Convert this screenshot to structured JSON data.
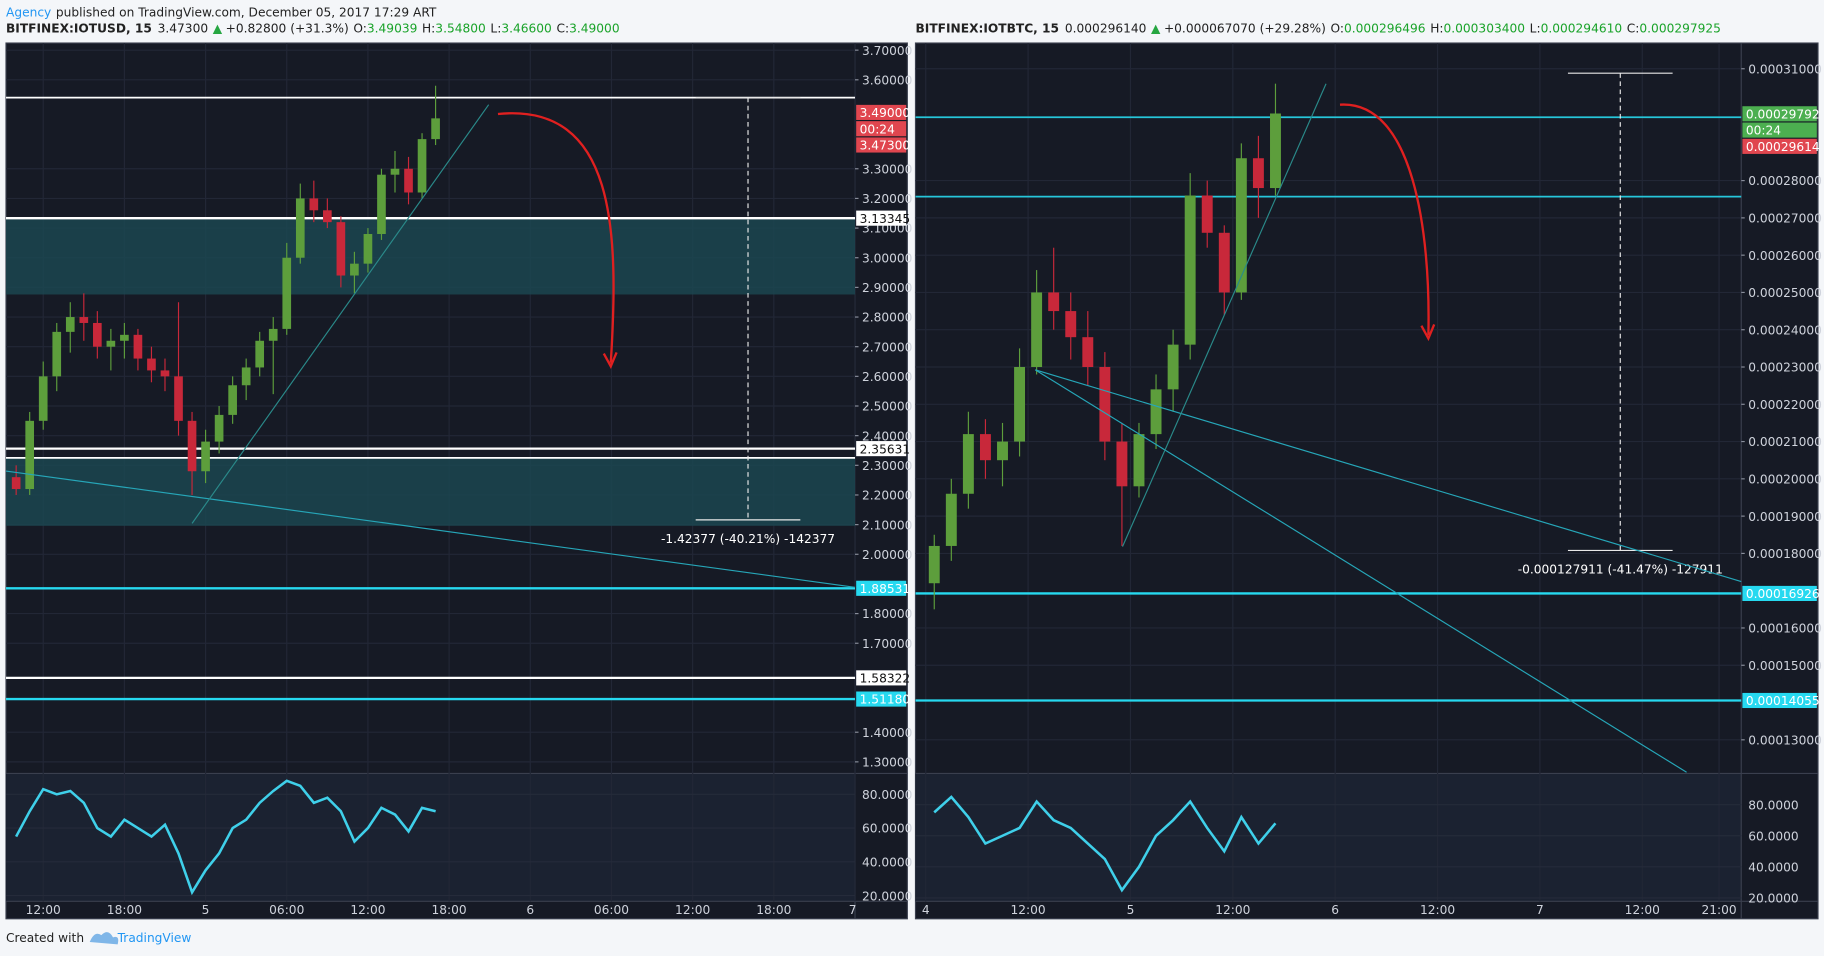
{
  "header": {
    "author": "Agency",
    "text": "published on TradingView.com, December 05, 2017 17:29 ART"
  },
  "footer": {
    "text": "Created with",
    "brand": "TradingView"
  },
  "chart_data": [
    {
      "type": "candlestick",
      "symbol": "BITFINEX:IOTUSD, 15",
      "last": "3.47300",
      "change_arrow": "▲",
      "change": "+0.82800 (+31.3%)",
      "ohlc": [
        {
          "label": "O:",
          "value": "3.49039"
        },
        {
          "label": "H:",
          "value": "3.54800"
        },
        {
          "label": "L:",
          "value": "3.46600"
        },
        {
          "label": "C:",
          "value": "3.49000"
        }
      ],
      "up_color": "#5d9e3c",
      "down_color": "#c8283a",
      "x": [
        1,
        2,
        3,
        4,
        5,
        6,
        7,
        8,
        9,
        10,
        11,
        12,
        13,
        14,
        15,
        16,
        17,
        18,
        19,
        20,
        21,
        22,
        23,
        24,
        25,
        26,
        27,
        28,
        29,
        30,
        31,
        32
      ],
      "open": [
        2.26,
        2.22,
        2.45,
        2.6,
        2.75,
        2.8,
        2.78,
        2.7,
        2.72,
        2.74,
        2.66,
        2.62,
        2.6,
        2.45,
        2.28,
        2.38,
        2.47,
        2.57,
        2.63,
        2.72,
        2.76,
        3.0,
        3.2,
        3.16,
        3.12,
        2.94,
        2.98,
        3.08,
        3.28,
        3.3,
        3.22,
        3.4
      ],
      "high": [
        2.3,
        2.48,
        2.65,
        2.78,
        2.85,
        2.88,
        2.82,
        2.76,
        2.78,
        2.76,
        2.7,
        2.66,
        2.85,
        2.48,
        2.42,
        2.5,
        2.6,
        2.66,
        2.75,
        2.8,
        3.05,
        3.25,
        3.26,
        3.2,
        3.14,
        3.02,
        3.1,
        3.3,
        3.36,
        3.34,
        3.42,
        3.58
      ],
      "low": [
        2.2,
        2.2,
        2.42,
        2.55,
        2.68,
        2.72,
        2.66,
        2.62,
        2.66,
        2.62,
        2.58,
        2.55,
        2.4,
        2.2,
        2.24,
        2.34,
        2.44,
        2.52,
        2.6,
        2.54,
        2.74,
        2.98,
        3.12,
        3.1,
        2.9,
        2.88,
        2.95,
        3.06,
        3.22,
        3.18,
        3.2,
        3.38
      ],
      "close": [
        2.22,
        2.45,
        2.6,
        2.75,
        2.8,
        2.78,
        2.7,
        2.72,
        2.74,
        2.66,
        2.62,
        2.6,
        2.45,
        2.28,
        2.38,
        2.47,
        2.57,
        2.63,
        2.72,
        2.76,
        3.0,
        3.2,
        3.16,
        3.12,
        2.94,
        2.98,
        3.08,
        3.28,
        3.3,
        3.22,
        3.4,
        3.47
      ],
      "xlim": [
        0.25,
        63
      ],
      "xticks": [
        {
          "value": 3,
          "label": "12:00"
        },
        {
          "value": 9,
          "label": "18:00"
        },
        {
          "value": 15,
          "label": "5"
        },
        {
          "value": 21,
          "label": "06:00"
        },
        {
          "value": 27,
          "label": "12:00"
        },
        {
          "value": 33,
          "label": "18:00"
        },
        {
          "value": 39,
          "label": "6"
        },
        {
          "value": 45,
          "label": "06:00"
        },
        {
          "value": 51,
          "label": "12:00"
        },
        {
          "value": 57,
          "label": "18:00"
        },
        {
          "value": 63,
          "label": "7"
        }
      ],
      "ylim": [
        1.265,
        3.724
      ],
      "yticks": [
        {
          "value": 3.7,
          "label": "3.70000"
        },
        {
          "value": 3.6,
          "label": "3.60000"
        },
        {
          "value": 3.3,
          "label": "3.30000"
        },
        {
          "value": 3.2,
          "label": "3.20000"
        },
        {
          "value": 3.1,
          "label": "3.10000"
        },
        {
          "value": 3.0,
          "label": "3.00000"
        },
        {
          "value": 2.9,
          "label": "2.90000"
        },
        {
          "value": 2.8,
          "label": "2.80000"
        },
        {
          "value": 2.7,
          "label": "2.70000"
        },
        {
          "value": 2.6,
          "label": "2.60000"
        },
        {
          "value": 2.5,
          "label": "2.50000"
        },
        {
          "value": 2.4,
          "label": "2.40000"
        },
        {
          "value": 2.3,
          "label": "2.30000"
        },
        {
          "value": 2.2,
          "label": "2.20000"
        },
        {
          "value": 2.1,
          "label": "2.10000"
        },
        {
          "value": 2.0,
          "label": "2.00000"
        },
        {
          "value": 1.8,
          "label": "1.80000"
        },
        {
          "value": 1.7,
          "label": "1.70000"
        },
        {
          "value": 1.4,
          "label": "1.40000"
        },
        {
          "value": 1.3,
          "label": "1.30000"
        }
      ],
      "grid": true,
      "zone_color": "#1b4750",
      "zones": [
        {
          "from": 2.876,
          "to": 3.13345
        },
        {
          "from": 2.096,
          "to": 2.325
        }
      ],
      "lines": [
        {
          "value": 3.54,
          "color": "#ffffff"
        },
        {
          "value": 2.325,
          "color": "#ffffff"
        }
      ],
      "countdown": "00:24",
      "price_labels": [
        {
          "value": 3.49,
          "label": "3.49000",
          "color": "#e0464f",
          "line": false
        },
        {
          "value": 3.473,
          "label": "3.47300",
          "color": "#e0464f",
          "line": false
        },
        {
          "value": 3.13345,
          "color": "#ffffff",
          "line": true
        },
        {
          "value": 2.35631,
          "color": "#ffffff",
          "line": true
        },
        {
          "value": 1.88531,
          "color": "#26d9f0",
          "line": true
        },
        {
          "value": 1.58322,
          "color": "#ffffff",
          "line": true
        },
        {
          "value": 1.5118,
          "label": "1.51180",
          "color": "#26d9f0",
          "line": true
        }
      ],
      "measure": {
        "from": 3.54,
        "to": 2.116,
        "label": "-1.42377 (-40.21%) -142377"
      },
      "rsi": {
        "color": "#3fd0ea",
        "values": [
          55,
          70,
          83,
          80,
          82,
          75,
          60,
          55,
          65,
          60,
          55,
          62,
          45,
          22,
          35,
          45,
          60,
          65,
          75,
          82,
          88,
          85,
          75,
          78,
          70,
          52,
          60,
          72,
          68,
          58,
          72,
          70
        ],
        "ylim": [
          16.6,
          92.4
        ],
        "yticks": [
          {
            "value": 80,
            "label": "80.0000"
          },
          {
            "value": 60,
            "label": "60.0000"
          },
          {
            "value": 40,
            "label": "40.0000"
          },
          {
            "value": 20,
            "label": "20.0000"
          }
        ]
      }
    },
    {
      "type": "candlestick",
      "symbol": "BITFINEX:IOTBTC, 15",
      "last": "0.000296140",
      "change_arrow": "▲",
      "change": "+0.000067070 (+29.28%)",
      "ohlc": [
        {
          "label": "O:",
          "value": "0.000296496"
        },
        {
          "label": "H:",
          "value": "0.000303400"
        },
        {
          "label": "L:",
          "value": "0.000294610"
        },
        {
          "label": "C:",
          "value": "0.000297925"
        }
      ],
      "up_color": "#5d9e3c",
      "down_color": "#c8283a",
      "x": [
        1,
        3,
        5,
        7,
        9,
        11,
        13,
        15,
        17,
        19,
        21,
        23,
        25,
        27,
        29,
        31,
        33,
        35,
        37,
        39,
        41
      ],
      "open": [
        0.000172,
        0.000182,
        0.000196,
        0.000212,
        0.000205,
        0.00021,
        0.00023,
        0.00025,
        0.000245,
        0.000238,
        0.00023,
        0.00021,
        0.000198,
        0.000212,
        0.000224,
        0.000236,
        0.000276,
        0.000266,
        0.00025,
        0.000286,
        0.000278
      ],
      "high": [
        0.000185,
        0.0002,
        0.000218,
        0.000216,
        0.000215,
        0.000235,
        0.000256,
        0.000262,
        0.00025,
        0.000245,
        0.000234,
        0.000215,
        0.000215,
        0.000228,
        0.00024,
        0.000282,
        0.00028,
        0.000268,
        0.00029,
        0.000292,
        0.000306
      ],
      "low": [
        0.000165,
        0.000178,
        0.000192,
        0.0002,
        0.000198,
        0.000206,
        0.000228,
        0.00024,
        0.000232,
        0.000225,
        0.000205,
        0.000182,
        0.000195,
        0.000208,
        0.000218,
        0.000232,
        0.000262,
        0.000244,
        0.000248,
        0.00027,
        0.000276
      ],
      "close": [
        0.000182,
        0.000196,
        0.000212,
        0.000205,
        0.00021,
        0.00023,
        0.00025,
        0.000245,
        0.000238,
        0.00023,
        0.00021,
        0.000198,
        0.000212,
        0.000224,
        0.000236,
        0.000276,
        0.000266,
        0.00025,
        0.000286,
        0.000278,
        0.000298
      ],
      "xlim": [
        -1.2,
        95.6
      ],
      "xticks": [
        {
          "value": 0,
          "label": "4"
        },
        {
          "value": 12,
          "label": "12:00"
        },
        {
          "value": 24,
          "label": "5"
        },
        {
          "value": 36,
          "label": "12:00"
        },
        {
          "value": 48,
          "label": "6"
        },
        {
          "value": 60,
          "label": "12:00"
        },
        {
          "value": 72,
          "label": "7"
        },
        {
          "value": 84,
          "label": "12:00"
        },
        {
          "value": 93,
          "label": "21:00"
        }
      ],
      "ylim": [
        0.0001213,
        0.0003169
      ],
      "yticks": [
        {
          "value": 0.00031,
          "label": "0.00031000"
        },
        {
          "value": 0.00028,
          "label": "0.00028000"
        },
        {
          "value": 0.00027,
          "label": "0.00027000"
        },
        {
          "value": 0.00026,
          "label": "0.00026000"
        },
        {
          "value": 0.00025,
          "label": "0.00025000"
        },
        {
          "value": 0.00024,
          "label": "0.00024000"
        },
        {
          "value": 0.00023,
          "label": "0.00023000"
        },
        {
          "value": 0.00022,
          "label": "0.00022000"
        },
        {
          "value": 0.00021,
          "label": "0.00021000"
        },
        {
          "value": 0.0002,
          "label": "0.00020000"
        },
        {
          "value": 0.00019,
          "label": "0.00019000"
        },
        {
          "value": 0.00018,
          "label": "0.00018000"
        },
        {
          "value": 0.00016,
          "label": "0.00016000"
        },
        {
          "value": 0.00015,
          "label": "0.00015000"
        },
        {
          "value": 0.00013,
          "label": "0.00013000"
        }
      ],
      "grid": true,
      "zone_color": "#1b4750",
      "zones": [],
      "lines": [
        {
          "value": 0.000297,
          "color": "#26c6da"
        },
        {
          "value": 0.0002757,
          "color": "#26c6da"
        }
      ],
      "countdown": "00:24",
      "price_labels": [
        {
          "value": 0.00029792,
          "color": "#4caf50",
          "line": false
        },
        {
          "value": 0.00029614,
          "color": "#e0464f",
          "line": false
        },
        {
          "value": 0.00016926,
          "color": "#26d9f0",
          "line": true
        },
        {
          "value": 0.00014055,
          "color": "#26d9f0",
          "line": true
        }
      ],
      "measure": {
        "from": 0.0003088,
        "to": 0.0001808,
        "label": "-0.000127911 (-41.47%) -127911"
      },
      "rsi": {
        "color": "#3fd0ea",
        "values": [
          75,
          85,
          72,
          55,
          60,
          65,
          82,
          70,
          65,
          55,
          45,
          25,
          40,
          60,
          70,
          82,
          65,
          50,
          72,
          55,
          68
        ],
        "ylim": [
          17.8,
          100.1
        ],
        "yticks": [
          {
            "value": 80,
            "label": "80.0000"
          },
          {
            "value": 60,
            "label": "60.0000"
          },
          {
            "value": 40,
            "label": "40.0000"
          },
          {
            "value": 20,
            "label": "20.0000"
          }
        ]
      }
    }
  ]
}
